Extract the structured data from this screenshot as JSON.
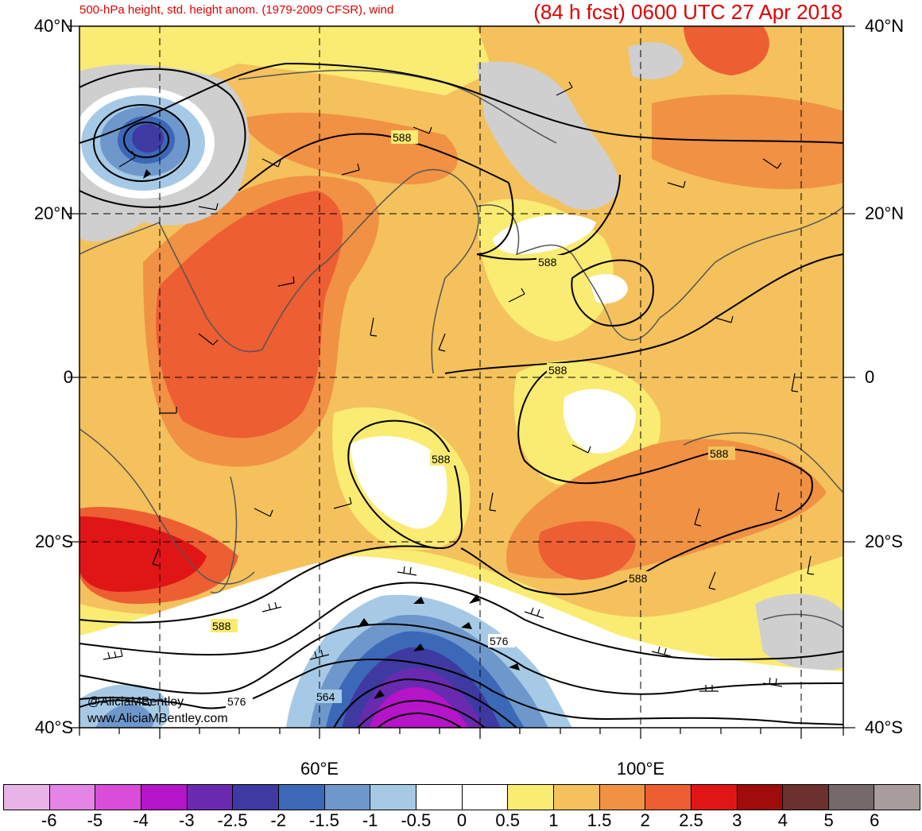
{
  "title": {
    "left": "500-hPa height, std. height anom. (1979-2009 CFSR), wind",
    "right": "(84 h fcst) 0600 UTC 27 Apr 2018"
  },
  "map": {
    "lat_labels": [
      "40°N",
      "20°N",
      "0",
      "20°S",
      "40°S"
    ],
    "lon_labels": [
      "60°E",
      "100°E"
    ],
    "contour_labels": [
      "588",
      "588",
      "588",
      "588",
      "588",
      "588",
      "588",
      "576",
      "576",
      "564"
    ],
    "credits": [
      "@AliciaMBentley",
      "www.AliciaMBentley.com"
    ]
  },
  "colorbar": {
    "colors": [
      "#e8b4e8",
      "#e484e4",
      "#d84ed8",
      "#b614c8",
      "#6a2ab0",
      "#3e3aa2",
      "#3c68b8",
      "#6e98cc",
      "#a6cae6",
      "#ffffff",
      "#ffffff",
      "#faeb72",
      "#f4c15c",
      "#f19144",
      "#ed5e33",
      "#e01616",
      "#a00b0b",
      "#6c302e",
      "#76696a",
      "#a89c9c"
    ],
    "labels": [
      "-6",
      "-5",
      "-4",
      "-3",
      "-2.5",
      "-2",
      "-1.5",
      "-1",
      "-0.5",
      "0",
      "0.5",
      "1",
      "1.5",
      "2",
      "2.5",
      "3",
      "4",
      "5",
      "6"
    ]
  }
}
